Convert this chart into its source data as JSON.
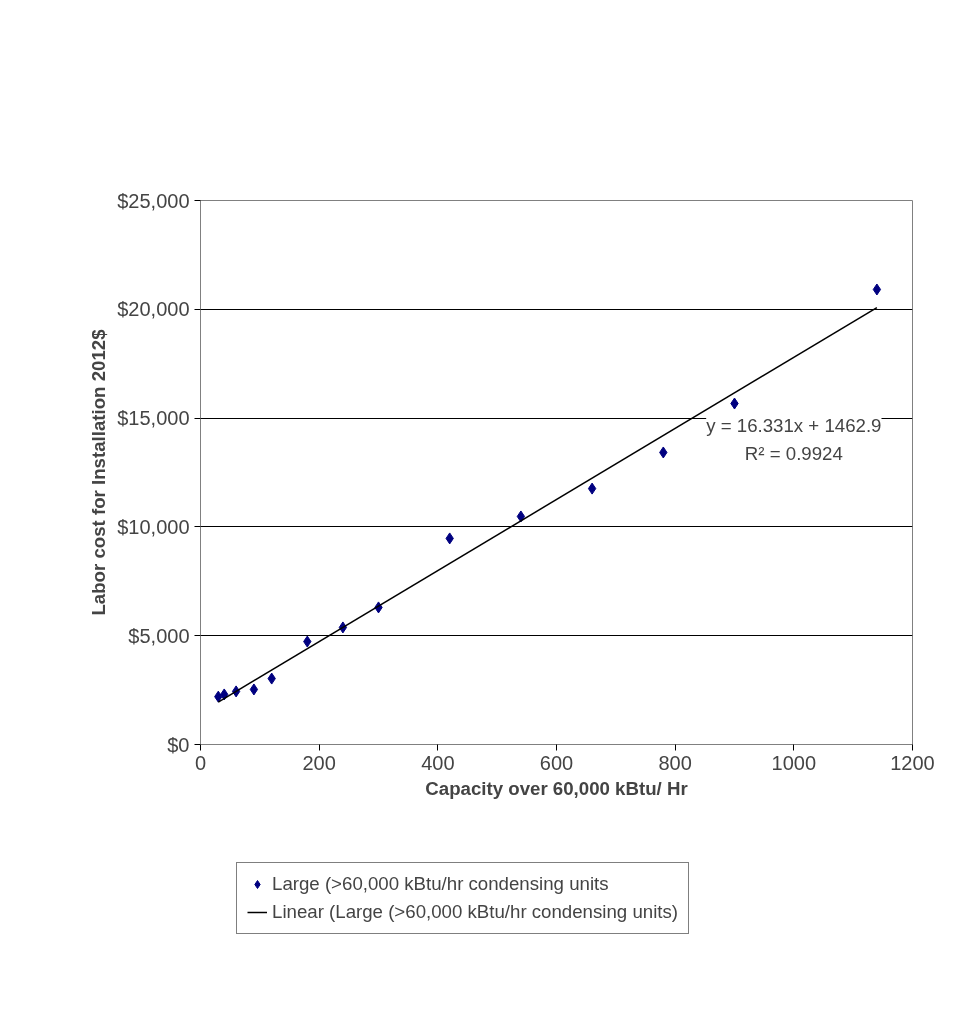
{
  "chart_data": {
    "type": "scatter",
    "xlabel": "Capacity over 60,000 kBtu/ Hr",
    "ylabel": "Labor cost for Installation 2012$",
    "xlim": [
      0,
      1200
    ],
    "xticks": [
      0,
      200,
      400,
      600,
      800,
      1000,
      1200
    ],
    "ylim": [
      0,
      25000
    ],
    "yticks": [
      {
        "value": 0,
        "label": "$0"
      },
      {
        "value": 5000,
        "label": "$5,000"
      },
      {
        "value": 10000,
        "label": "$10,000"
      },
      {
        "value": 15000,
        "label": "$15,000"
      },
      {
        "value": 20000,
        "label": "$20,000"
      },
      {
        "value": 25000,
        "label": "$25,000"
      }
    ],
    "grid": "y",
    "legend": "bottom",
    "series": [
      {
        "name": "Large (>60,000 kBtu/hr condensing units",
        "marker": "diamond",
        "color": "#000080",
        "x": [
          30,
          40,
          60,
          90,
          120,
          180,
          240,
          300,
          420,
          540,
          660,
          780,
          900,
          1140
        ],
        "values": [
          2200,
          2300,
          2440,
          2530,
          3030,
          4730,
          5380,
          6300,
          9470,
          10480,
          11760,
          13420,
          15670,
          20910
        ]
      },
      {
        "name": "Linear (Large (>60,000 kBtu/hr condensing units)",
        "type": "line",
        "color": "#000000",
        "line_style": "solid",
        "x": [
          30,
          1140
        ],
        "values": [
          1950,
          20080
        ]
      }
    ],
    "annotations": [
      "y = 16.331x + 1462.9",
      "R² = 0.9924"
    ]
  }
}
